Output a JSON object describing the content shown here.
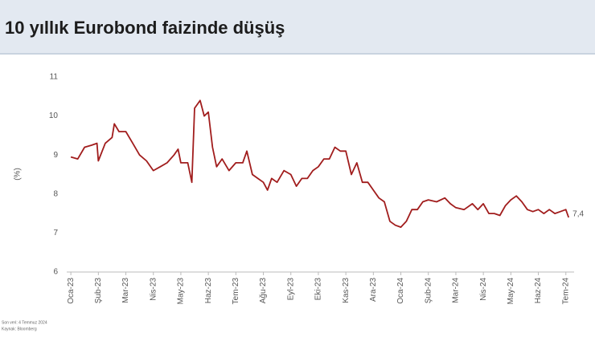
{
  "chart_data": {
    "type": "line",
    "title": "10 yıllık Eurobond faizinde düşüş",
    "ylabel": "(%)",
    "x": [
      0,
      0.25,
      0.5,
      0.75,
      0.95,
      1.0,
      1.25,
      1.5,
      1.58,
      1.75,
      2.0,
      2.25,
      2.5,
      2.75,
      3.0,
      3.25,
      3.5,
      3.75,
      3.9,
      4.0,
      4.25,
      4.4,
      4.5,
      4.7,
      4.85,
      5.0,
      5.15,
      5.3,
      5.5,
      5.75,
      6.0,
      6.25,
      6.4,
      6.6,
      6.8,
      7.0,
      7.15,
      7.3,
      7.5,
      7.75,
      8.0,
      8.2,
      8.4,
      8.6,
      8.8,
      9.0,
      9.2,
      9.4,
      9.6,
      9.8,
      10.0,
      10.2,
      10.4,
      10.6,
      10.8,
      11.0,
      11.2,
      11.4,
      11.6,
      11.8,
      12.0,
      12.2,
      12.4,
      12.6,
      12.8,
      13.0,
      13.3,
      13.6,
      13.8,
      14.0,
      14.3,
      14.6,
      14.8,
      15.0,
      15.2,
      15.4,
      15.6,
      15.8,
      16.0,
      16.2,
      16.4,
      16.6,
      16.8,
      17.0,
      17.2,
      17.4,
      17.6,
      17.8,
      18.0,
      18.1
    ],
    "series": [
      {
        "name": "10 yıllık Eurobond",
        "color": "#a11d1d",
        "values": [
          8.95,
          8.9,
          9.2,
          9.25,
          9.3,
          8.85,
          9.3,
          9.45,
          9.8,
          9.6,
          9.6,
          9.3,
          9.0,
          8.85,
          8.6,
          8.7,
          8.8,
          9.0,
          9.15,
          8.8,
          8.8,
          8.3,
          10.2,
          10.4,
          10.0,
          10.1,
          9.2,
          8.7,
          8.9,
          8.6,
          8.8,
          8.8,
          9.1,
          8.5,
          8.4,
          8.3,
          8.1,
          8.4,
          8.3,
          8.6,
          8.5,
          8.2,
          8.4,
          8.4,
          8.6,
          8.7,
          8.9,
          8.9,
          9.2,
          9.1,
          9.1,
          8.5,
          8.8,
          8.3,
          8.3,
          8.1,
          7.9,
          7.8,
          7.3,
          7.2,
          7.15,
          7.3,
          7.6,
          7.6,
          7.8,
          7.85,
          7.8,
          7.9,
          7.75,
          7.65,
          7.6,
          7.75,
          7.6,
          7.75,
          7.5,
          7.5,
          7.45,
          7.7,
          7.85,
          7.95,
          7.8,
          7.6,
          7.55,
          7.6,
          7.5,
          7.6,
          7.5,
          7.55,
          7.6,
          7.4
        ]
      }
    ],
    "annotations": [
      {
        "x": 18.1,
        "y": 7.4,
        "text": "7,4"
      }
    ],
    "xlim": [
      -0.15,
      18.3
    ],
    "xticks": [
      {
        "value": 0,
        "label": "Oca-23"
      },
      {
        "value": 1,
        "label": "Şub-23"
      },
      {
        "value": 2,
        "label": "Mar-23"
      },
      {
        "value": 3,
        "label": "Nis-23"
      },
      {
        "value": 4,
        "label": "May-23"
      },
      {
        "value": 5,
        "label": "Haz-23"
      },
      {
        "value": 6,
        "label": "Tem-23"
      },
      {
        "value": 7,
        "label": "Ağu-23"
      },
      {
        "value": 8,
        "label": "Eyl-23"
      },
      {
        "value": 9,
        "label": "Eki-23"
      },
      {
        "value": 10,
        "label": "Kas-23"
      },
      {
        "value": 11,
        "label": "Ara-23"
      },
      {
        "value": 12,
        "label": "Oca-24"
      },
      {
        "value": 13,
        "label": "Şub-24"
      },
      {
        "value": 14,
        "label": "Mar-24"
      },
      {
        "value": 15,
        "label": "Nis-24"
      },
      {
        "value": 16,
        "label": "May-24"
      },
      {
        "value": 17,
        "label": "Haz-24"
      },
      {
        "value": 18,
        "label": "Tem-24"
      }
    ],
    "ylim": [
      6,
      11
    ],
    "yticks": [
      6,
      7,
      8,
      9,
      10,
      11
    ],
    "grid": false,
    "notes": [
      "Son veri: 4 Temmuz 2024",
      "Kaynak: Bloomberg"
    ]
  }
}
